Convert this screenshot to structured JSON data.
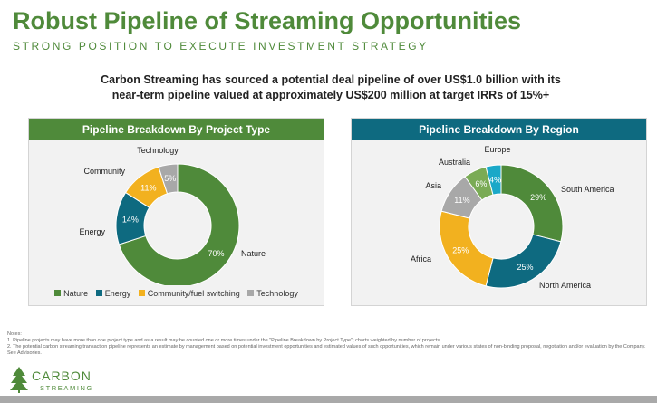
{
  "header": {
    "title": "Robust Pipeline of Streaming Opportunities",
    "subtitle": "STRONG POSITION TO EXECUTE INVESTMENT STRATEGY"
  },
  "intro": {
    "line1": "Carbon Streaming has sourced a potential deal pipeline of over US$1.0 billion with its",
    "line2": "near-term pipeline valued at approximately US$200 million at target IRRs of 15%+"
  },
  "chart_data": [
    {
      "type": "pie",
      "title": "Pipeline Breakdown By Project Type",
      "categories": [
        "Nature",
        "Energy",
        "Community",
        "Technology"
      ],
      "values": [
        70,
        14,
        11,
        5
      ],
      "value_labels": [
        "70%",
        "14%",
        "11%",
        "5%"
      ],
      "colors": [
        "#4f8a3a",
        "#0e6a80",
        "#f2b11f",
        "#a8a8a8"
      ],
      "legend": [
        "Nature",
        "Energy",
        "Community/fuel switching",
        "Technology"
      ],
      "legend_position": "bottom"
    },
    {
      "type": "pie",
      "title": "Pipeline Breakdown By Region",
      "categories": [
        "South America",
        "North America",
        "Africa",
        "Asia",
        "Australia",
        "Europe"
      ],
      "values": [
        29,
        25,
        25,
        11,
        6,
        4
      ],
      "value_labels": [
        "29%",
        "25%",
        "25%",
        "11%",
        "6%",
        "4%"
      ],
      "colors": [
        "#4f8a3a",
        "#0e6a80",
        "#f2b11f",
        "#a8a8a8",
        "#7aab55",
        "#1aa8c8"
      ]
    }
  ],
  "notes": {
    "heading": "Notes:",
    "items": [
      "1.  Pipeline projects may have more than one project type and as a result may be counted one or more times under the \"Pipeline Breakdown by Project Type\"; charts weighted by number of projects.",
      "2.  The potential carbon streaming transaction pipeline represents an estimate by management based on potential investment opportunities and estimated values of such opportunities, which remain under various states of non-binding proposal, negotiation and/or evaluation by the Company. See Advisories."
    ]
  },
  "logo": {
    "word": "CARBON",
    "sub": "STREAMING"
  }
}
